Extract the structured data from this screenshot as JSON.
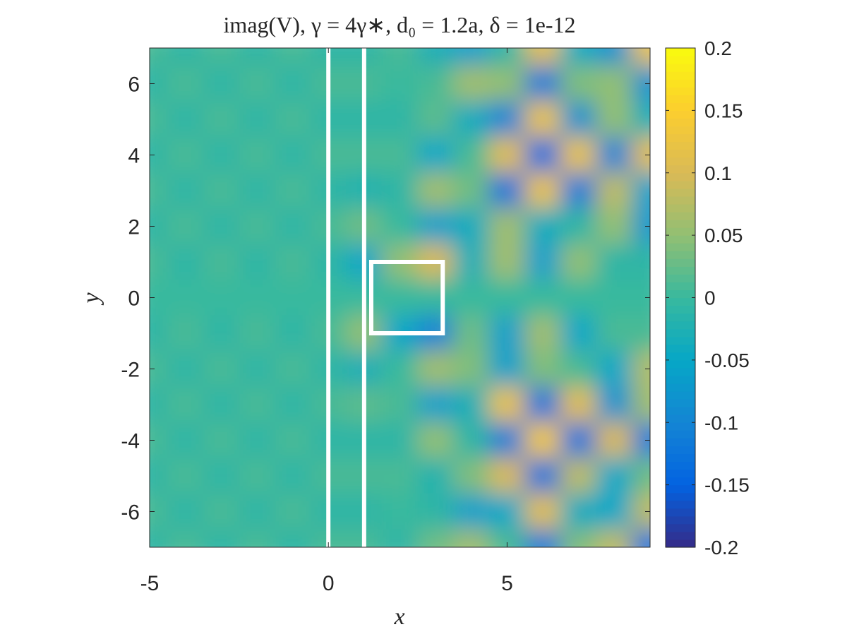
{
  "chart_data": {
    "type": "heatmap",
    "title": "imag(V), γ = 4γ∗, d₀ = 1.2a, δ = 1e-12",
    "x_label": "x",
    "y_label": "y",
    "x": [
      -5,
      -4,
      -3,
      -2,
      -1,
      0,
      1,
      2,
      3,
      4,
      5,
      6,
      7,
      8,
      9
    ],
    "y": [
      7,
      6,
      5,
      4,
      3,
      2,
      1,
      0,
      -1,
      -2,
      -3,
      -4,
      -5,
      -6,
      -7
    ],
    "z": [
      [
        0.01,
        -0.01,
        0.01,
        -0.01,
        0.01,
        -0.01,
        -0.01,
        0.01,
        -0.03,
        -0.06,
        -0.01,
        0.11,
        -0.04,
        -0.08,
        0.12
      ],
      [
        -0.01,
        0.01,
        -0.01,
        0.01,
        -0.01,
        0.01,
        0.01,
        0,
        0.01,
        0.06,
        0.05,
        -0.11,
        0.04,
        0.05,
        -0.08
      ],
      [
        0.01,
        -0.01,
        0.01,
        -0.01,
        0.01,
        -0.01,
        -0.01,
        -0.01,
        0.02,
        -0.04,
        -0.1,
        0.12,
        -0.08,
        0.05,
        -0.03
      ],
      [
        -0.01,
        0.01,
        -0.01,
        0.01,
        -0.01,
        0.01,
        0.01,
        0.01,
        -0.05,
        0.01,
        0.11,
        -0.13,
        0.12,
        -0.1,
        0.11
      ],
      [
        0.01,
        -0.01,
        0.01,
        -0.01,
        0.01,
        -0.01,
        -0.02,
        -0.01,
        0.06,
        0.03,
        -0.12,
        0.12,
        -0.11,
        0.08,
        -0.06
      ],
      [
        -0.01,
        0.01,
        -0.01,
        0.01,
        -0.01,
        0.01,
        0.03,
        0,
        -0.06,
        -0.04,
        0.06,
        -0.04,
        -0.01,
        0.05,
        -0.07
      ],
      [
        0.01,
        -0.01,
        0.01,
        -0.01,
        0.01,
        -0.01,
        -0.05,
        0.05,
        0.1,
        -0.03,
        0.06,
        -0.06,
        0.05,
        -0.01,
        -0.01
      ],
      [
        0,
        0,
        0,
        0,
        0,
        0,
        0,
        0,
        0,
        0,
        0,
        0,
        0,
        0,
        0
      ],
      [
        -0.01,
        0.01,
        -0.01,
        0.01,
        -0.01,
        0.01,
        0.05,
        -0.05,
        -0.1,
        0.03,
        -0.06,
        0.06,
        -0.05,
        0.01,
        0.01
      ],
      [
        0.01,
        -0.01,
        0.01,
        -0.01,
        0.01,
        -0.01,
        -0.03,
        0,
        0.06,
        0.04,
        -0.06,
        0.04,
        0.01,
        -0.05,
        0.07
      ],
      [
        -0.01,
        0.01,
        -0.01,
        0.01,
        -0.01,
        0.01,
        0.02,
        0.01,
        -0.06,
        -0.03,
        0.12,
        -0.12,
        0.11,
        -0.08,
        0.06
      ],
      [
        0.01,
        -0.01,
        0.01,
        -0.01,
        0.01,
        -0.01,
        -0.01,
        -0.01,
        0.05,
        -0.01,
        -0.11,
        0.13,
        -0.12,
        0.1,
        -0.11
      ],
      [
        -0.01,
        0.01,
        -0.01,
        0.01,
        -0.01,
        0.01,
        0.01,
        0.01,
        -0.02,
        0.04,
        0.1,
        -0.12,
        0.08,
        -0.05,
        0.03
      ],
      [
        0.01,
        -0.01,
        0.01,
        -0.01,
        0.01,
        -0.01,
        -0.01,
        0,
        -0.01,
        -0.06,
        -0.05,
        0.11,
        -0.04,
        -0.05,
        0.08
      ],
      [
        -0.01,
        0.01,
        -0.01,
        0.01,
        -0.01,
        0.01,
        0.01,
        -0.01,
        0.03,
        0.06,
        0.01,
        -0.11,
        0.04,
        0.08,
        -0.12
      ]
    ],
    "xlim": [
      -5,
      9
    ],
    "ylim": [
      -7,
      7
    ],
    "xticks": [
      -5,
      0,
      5
    ],
    "yticks": [
      -6,
      -4,
      -2,
      0,
      2,
      4,
      6
    ],
    "clim": [
      -0.2,
      0.2
    ],
    "cticks": [
      -0.2,
      -0.15,
      -0.1,
      -0.05,
      0,
      0.05,
      0.1,
      0.15,
      0.2
    ],
    "colormap": [
      "#352a87",
      "#0363e1",
      "#1485d4",
      "#06a7c6",
      "#38b99e",
      "#92bf73",
      "#d9ba56",
      "#fcce2e",
      "#f9fb0e"
    ],
    "vlines": [
      0,
      1
    ],
    "box": {
      "x": [
        1.2,
        3.2
      ],
      "y": [
        -1,
        1
      ]
    },
    "overlay_color": "#ffffff"
  }
}
